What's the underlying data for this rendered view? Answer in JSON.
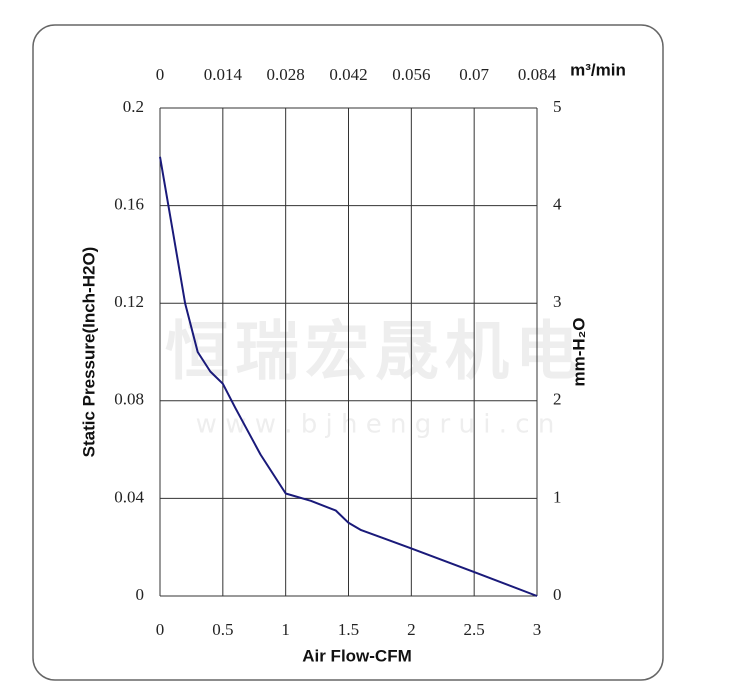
{
  "chart_data": {
    "type": "line",
    "xlabel": "Air Flow-CFM",
    "ylabel": "Static Pressure(Inch-H2O)",
    "x2label": "m³/min",
    "y2label": "mm-H₂O",
    "watermark": [
      "恒瑞宏晟机电",
      "w w w . b j h e n g r u i . c n"
    ],
    "x": [
      0,
      0.1,
      0.2,
      0.3,
      0.4,
      0.5,
      0.6,
      0.8,
      1.0,
      1.2,
      1.4,
      1.5,
      1.6,
      2.0,
      2.5,
      3.0
    ],
    "values": [
      0.18,
      0.15,
      0.12,
      0.1,
      0.092,
      0.087,
      0.077,
      0.058,
      0.042,
      0.039,
      0.035,
      0.03,
      0.027,
      0.0195,
      0.0098,
      0
    ],
    "color": "#1a1a7a",
    "xlim": [
      0,
      3
    ],
    "xticks": [
      0,
      0.5,
      1,
      1.5,
      2,
      2.5,
      3
    ],
    "ylim": [
      0,
      0.2
    ],
    "yticks": [
      0,
      0.04,
      0.08,
      0.12,
      0.16,
      0.2
    ],
    "x2lim": [
      0,
      0.084
    ],
    "x2ticks": [
      0,
      0.014,
      0.028,
      0.042,
      0.056,
      0.07,
      0.084
    ],
    "y2lim": [
      0,
      5
    ],
    "y2ticks": [
      0,
      1,
      2,
      3,
      4,
      5
    ],
    "grid": true
  }
}
